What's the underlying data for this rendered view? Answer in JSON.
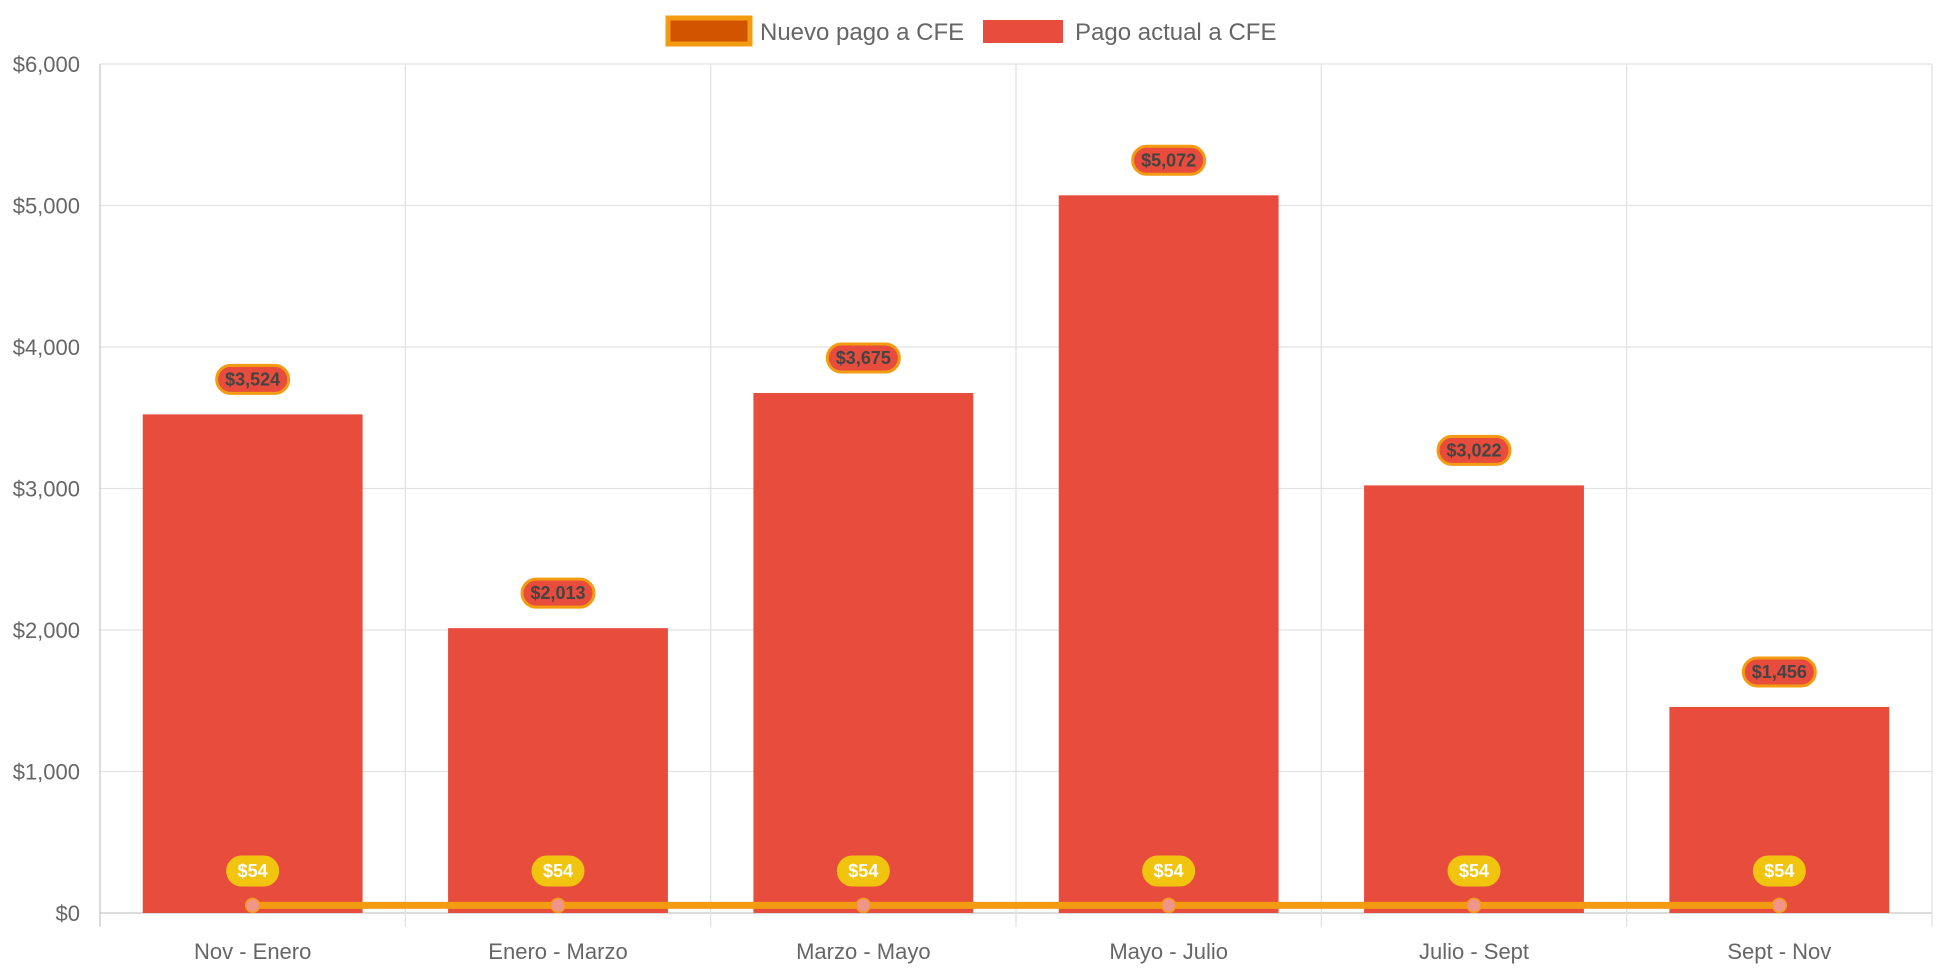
{
  "chart_data": {
    "type": "bar",
    "categories": [
      "Nov - Enero",
      "Enero - Marzo",
      "Marzo - Mayo",
      "Mayo - Julio",
      "Julio - Sept",
      "Sept - Nov"
    ],
    "series": [
      {
        "name": "Pago actual a CFE",
        "type": "bar",
        "values": [
          3524,
          2013,
          3675,
          5072,
          3022,
          1456
        ],
        "labels": [
          "$3,524",
          "$2,013",
          "$3,675",
          "$5,072",
          "$3,022",
          "$1,456"
        ],
        "color": "#e74c3c",
        "label_border_color": "#f39c12"
      },
      {
        "name": "Nuevo pago a CFE",
        "type": "line",
        "values": [
          54,
          54,
          54,
          54,
          54,
          54
        ],
        "labels": [
          "$54",
          "$54",
          "$54",
          "$54",
          "$54",
          "$54"
        ],
        "color": "#f39c12",
        "fill_color": "#d35400",
        "point_color": "#f1948a",
        "label_color": "#f1c40f"
      }
    ],
    "y_ticks": [
      "$0",
      "$1,000",
      "$2,000",
      "$3,000",
      "$4,000",
      "$5,000",
      "$6,000"
    ],
    "ylim": [
      0,
      6000
    ],
    "grid": true,
    "legend_position": "top"
  }
}
